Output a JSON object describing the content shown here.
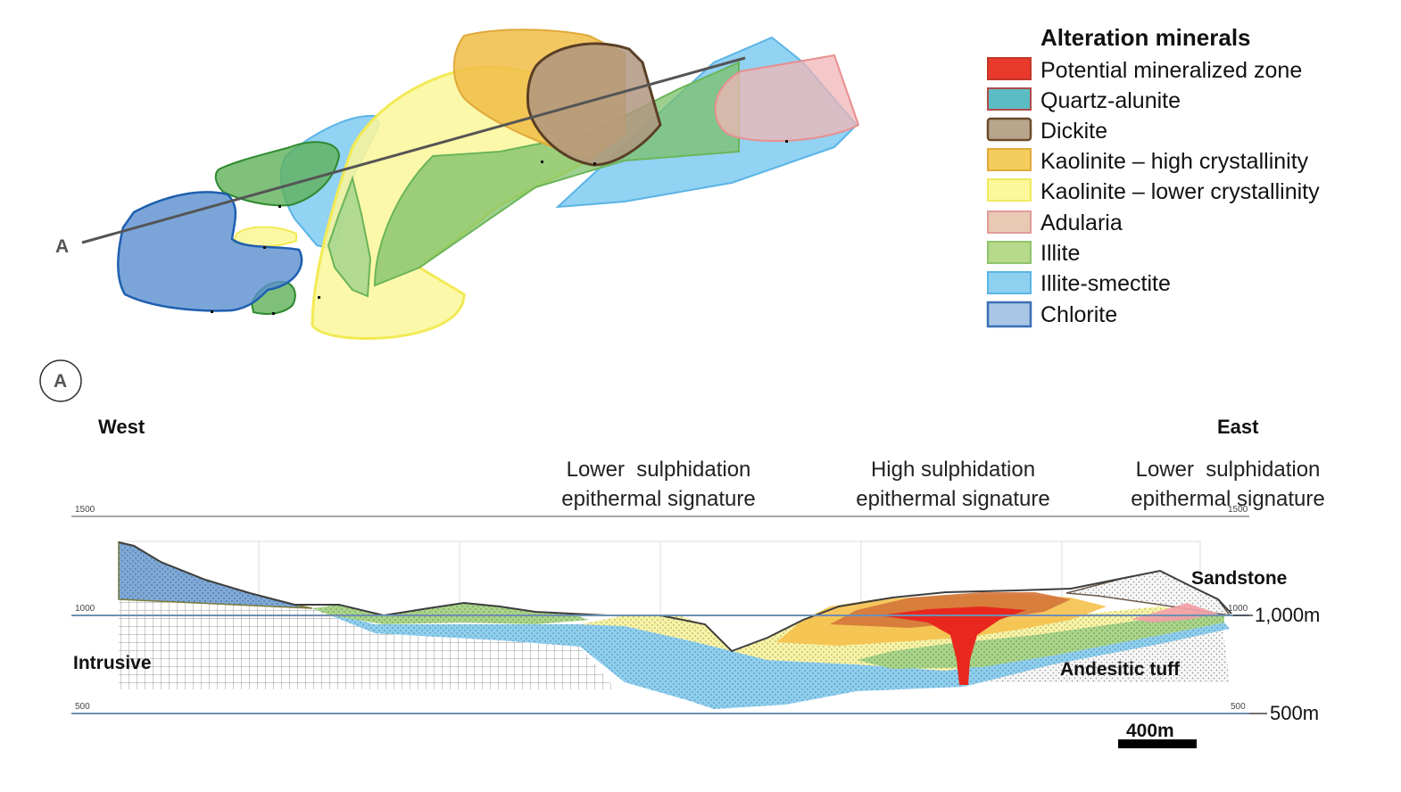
{
  "legend": {
    "title": "Alteration minerals",
    "items": [
      {
        "label": "Potential mineralized zone",
        "fill": "#e8392a",
        "stroke": "#c0392b"
      },
      {
        "label": "Quartz-alunite",
        "fill": "#5bbcc4",
        "stroke": "#b04a4a"
      },
      {
        "label": "Dickite",
        "fill": "#b8a58c",
        "stroke": "#6b4a2a"
      },
      {
        "label": "Kaolinite – high crystallinity",
        "fill": "#f5cc5e",
        "stroke": "#e0a93a"
      },
      {
        "label": "Kaolinite – lower crystallinity",
        "fill": "#fbf79a",
        "stroke": "#f0e860"
      },
      {
        "label": "Adularia",
        "fill": "#e8c9b4",
        "stroke": "#e09a9a"
      },
      {
        "label": "Illite",
        "fill": "#b6d98c",
        "stroke": "#8fc46a"
      },
      {
        "label": "Illite-smectite",
        "fill": "#8fd0f0",
        "stroke": "#5ab4e6"
      },
      {
        "label": "Chlorite",
        "fill": "#a9c6e4",
        "stroke": "#3a6fb6"
      }
    ]
  },
  "map": {
    "section_line_label": "A"
  },
  "section": {
    "marker_label": "A",
    "west_label": "West",
    "east_label": "East",
    "signatures": [
      {
        "line1": "Lower  sulphidation",
        "line2": "epithermal signature"
      },
      {
        "line1": "High sulphidation",
        "line2": "epithermal signature"
      },
      {
        "line1": "Lower  sulphidation",
        "line2": "epithermal signature"
      }
    ],
    "units": {
      "sandstone": "Sandstone",
      "intrusive": "Intrusive",
      "andesitic_tuff": "Andesitic tuff"
    },
    "elevations": {
      "upper": "1,000m",
      "lower": "500m",
      "grid_1500_left": "1500",
      "grid_1500_right": "1500",
      "grid_1000_left": "1000",
      "grid_1000_right": "1000",
      "grid_500_left": "500",
      "grid_500_right": "500"
    },
    "scale_bar_label": "400m"
  }
}
